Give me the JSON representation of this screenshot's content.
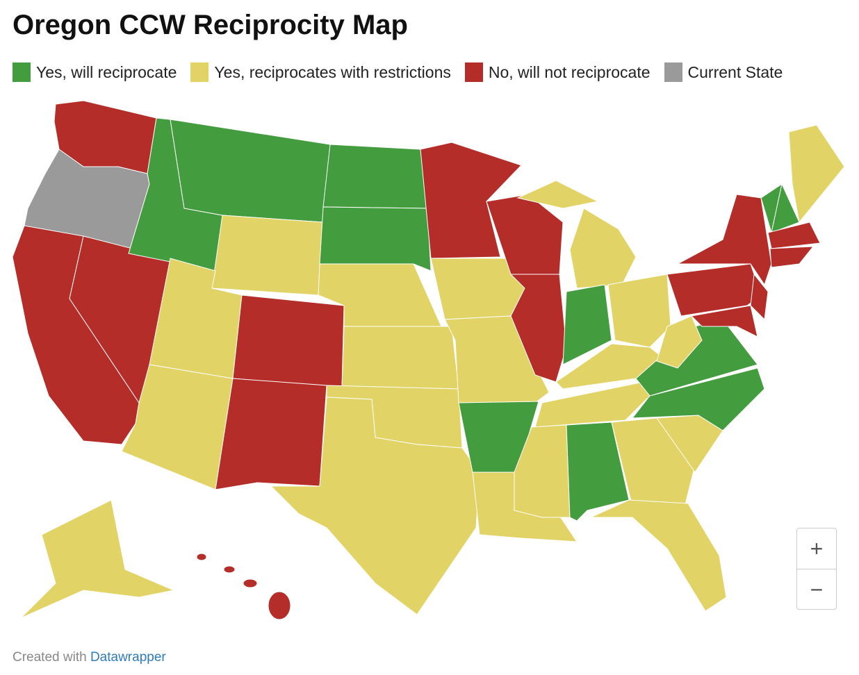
{
  "title": "Oregon CCW Reciprocity Map",
  "legend": [
    {
      "label": "Yes, will reciprocate",
      "color": "#439c3e"
    },
    {
      "label": "Yes, reciprocates with restrictions",
      "color": "#e2d366"
    },
    {
      "label": "No, will not reciprocate",
      "color": "#b52d28"
    },
    {
      "label": "Current State",
      "color": "#9a9a9a"
    }
  ],
  "zoom": {
    "in": "+",
    "out": "−"
  },
  "footer": {
    "prefix": "Created with",
    "link": "Datawrapper"
  }
}
